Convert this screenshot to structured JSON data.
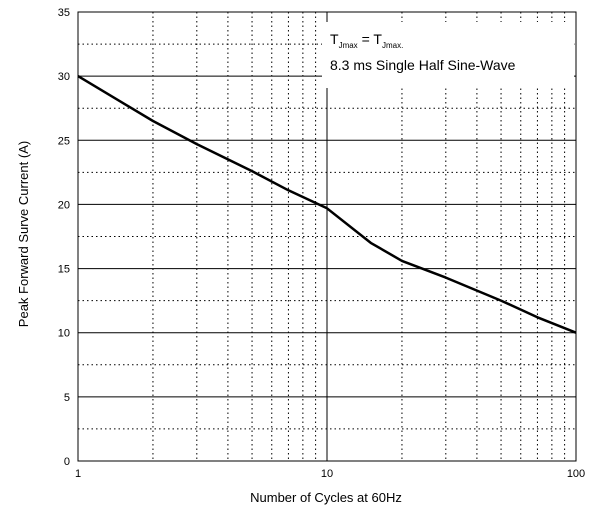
{
  "chart_data": {
    "type": "line",
    "title": "",
    "xlabel": "Number of Cycles at 60Hz",
    "ylabel": "Peak Forward Surve Current (A)",
    "x_scale": "log",
    "xlim": [
      1,
      100
    ],
    "ylim": [
      0,
      35
    ],
    "x_ticks": [
      1,
      10,
      100
    ],
    "x_tick_labels": [
      "1",
      "10",
      "100"
    ],
    "y_ticks": [
      0,
      5,
      10,
      15,
      20,
      25,
      30,
      35
    ],
    "y_tick_labels": [
      "0",
      "5",
      "10",
      "15",
      "20",
      "25",
      "30",
      "35"
    ],
    "grid": {
      "major": true,
      "minor_dotted": true
    },
    "legend": "none",
    "annotation": {
      "line1": {
        "t": "T",
        "sub1": "Jmax",
        "eq": " = T",
        "sub2": "Jmax."
      },
      "line2": "8.3 ms Single Half Sine-Wave",
      "placement": "top-right"
    },
    "series": [
      {
        "color": "#000000",
        "x": [
          1,
          2,
          3,
          5,
          7,
          10,
          15,
          20,
          30,
          50,
          70,
          100
        ],
        "y": [
          30.0,
          26.5,
          24.7,
          22.6,
          21.1,
          19.7,
          17.0,
          15.6,
          14.3,
          12.5,
          11.2,
          10.0
        ]
      }
    ]
  }
}
